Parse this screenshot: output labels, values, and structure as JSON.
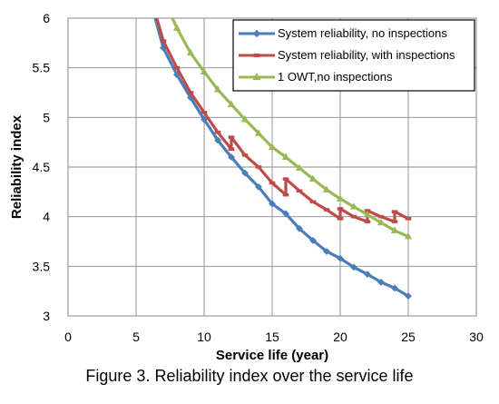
{
  "caption": "Figure 3. Reliability index over the service life",
  "chart_data": {
    "type": "line",
    "title": "",
    "xlabel": "Service life (year)",
    "ylabel": "Reliability index",
    "xlim": [
      0,
      30
    ],
    "ylim": [
      3,
      6
    ],
    "xticks": [
      0,
      5,
      10,
      15,
      20,
      25,
      30
    ],
    "yticks": [
      3,
      3.5,
      4,
      4.5,
      5,
      5.5,
      6
    ],
    "ytick_labels": [
      "3",
      "3.5",
      "4",
      "4.5",
      "5",
      "5.5",
      "6"
    ],
    "grid": true,
    "legend_position": "top-right",
    "series": [
      {
        "name": "System reliability, no inspections",
        "color": "#4a7ebb",
        "marker": "diamond",
        "x": [
          6,
          7,
          8,
          9,
          10,
          11,
          12,
          13,
          14,
          15,
          16,
          17,
          18,
          19,
          20,
          21,
          22,
          23,
          24,
          25
        ],
        "y": [
          6.2,
          5.7,
          5.43,
          5.2,
          4.98,
          4.77,
          4.6,
          4.44,
          4.3,
          4.13,
          4.03,
          3.88,
          3.76,
          3.65,
          3.58,
          3.49,
          3.42,
          3.34,
          3.28,
          3.2
        ]
      },
      {
        "name": "System reliability, with inspections",
        "color": "#be4b48",
        "marker": "dash",
        "x": [
          6,
          7,
          8,
          9,
          10,
          11,
          12,
          12,
          13,
          14,
          15,
          16,
          16,
          17,
          18,
          19,
          20,
          20,
          21,
          22,
          22,
          23,
          24,
          24,
          25
        ],
        "y": [
          6.25,
          5.77,
          5.5,
          5.25,
          5.05,
          4.85,
          4.68,
          4.8,
          4.62,
          4.5,
          4.34,
          4.22,
          4.38,
          4.26,
          4.15,
          4.07,
          3.98,
          4.08,
          4.0,
          3.95,
          4.06,
          4.0,
          3.95,
          4.05,
          3.98
        ]
      },
      {
        "name": "1 OWT,no inspections",
        "color": "#98b954",
        "marker": "triangle",
        "x": [
          7,
          8,
          9,
          10,
          11,
          12,
          13,
          14,
          15,
          16,
          17,
          18,
          19,
          20,
          21,
          22,
          23,
          24,
          25
        ],
        "y": [
          6.2,
          5.9,
          5.65,
          5.46,
          5.28,
          5.13,
          4.98,
          4.84,
          4.7,
          4.6,
          4.49,
          4.38,
          4.27,
          4.18,
          4.1,
          4.02,
          3.94,
          3.86,
          3.8
        ]
      }
    ]
  }
}
